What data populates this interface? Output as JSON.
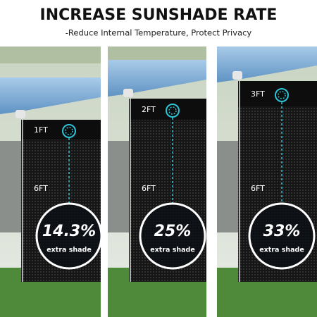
{
  "header": {
    "title": "INCREASE SUNSHADE RATE",
    "subtitle": "-Reduce Internal Temperature, Protect Privacy"
  },
  "panels": [
    {
      "top_label": "1FT",
      "side_label": "6FT",
      "rate": "14.3%",
      "caption": "extra shade"
    },
    {
      "top_label": "2FT",
      "side_label": "6FT",
      "rate": "25%",
      "caption": "extra shade"
    },
    {
      "top_label": "3FT",
      "side_label": "6FT",
      "rate": "33%",
      "caption": "extra shade"
    }
  ]
}
